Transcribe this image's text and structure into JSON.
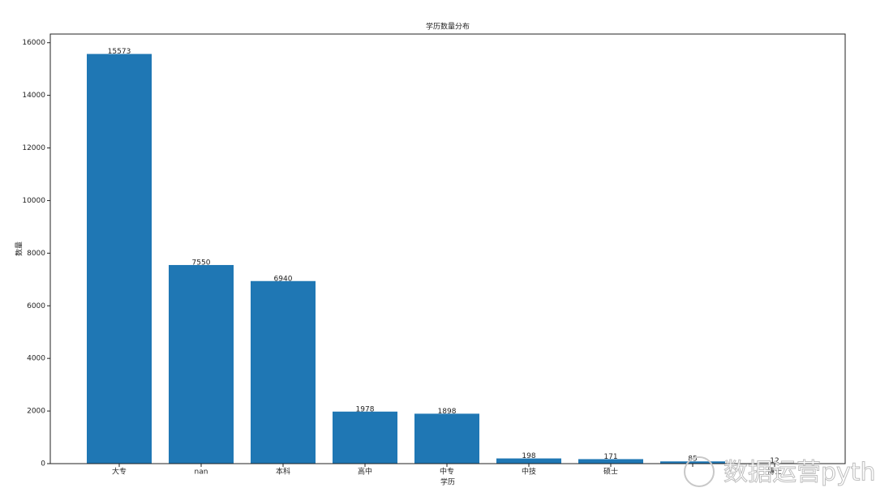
{
  "chart_data": {
    "type": "bar",
    "title": "学历数量分布",
    "x_label": "学历",
    "y_label": "数量",
    "categories": [
      "大专",
      "nan",
      "本科",
      "高中",
      "中专",
      "中技",
      "硕士",
      null,
      "博士"
    ],
    "values": [
      15573,
      7550,
      6940,
      1978,
      1898,
      198,
      171,
      85,
      12
    ],
    "color": "#1f77b4",
    "ylim": [
      0,
      16330
    ],
    "yticks": [
      0,
      2000,
      4000,
      6000,
      8000,
      10000,
      12000,
      14000,
      16000
    ],
    "grid": false
  },
  "watermark": "数据运营pyth"
}
